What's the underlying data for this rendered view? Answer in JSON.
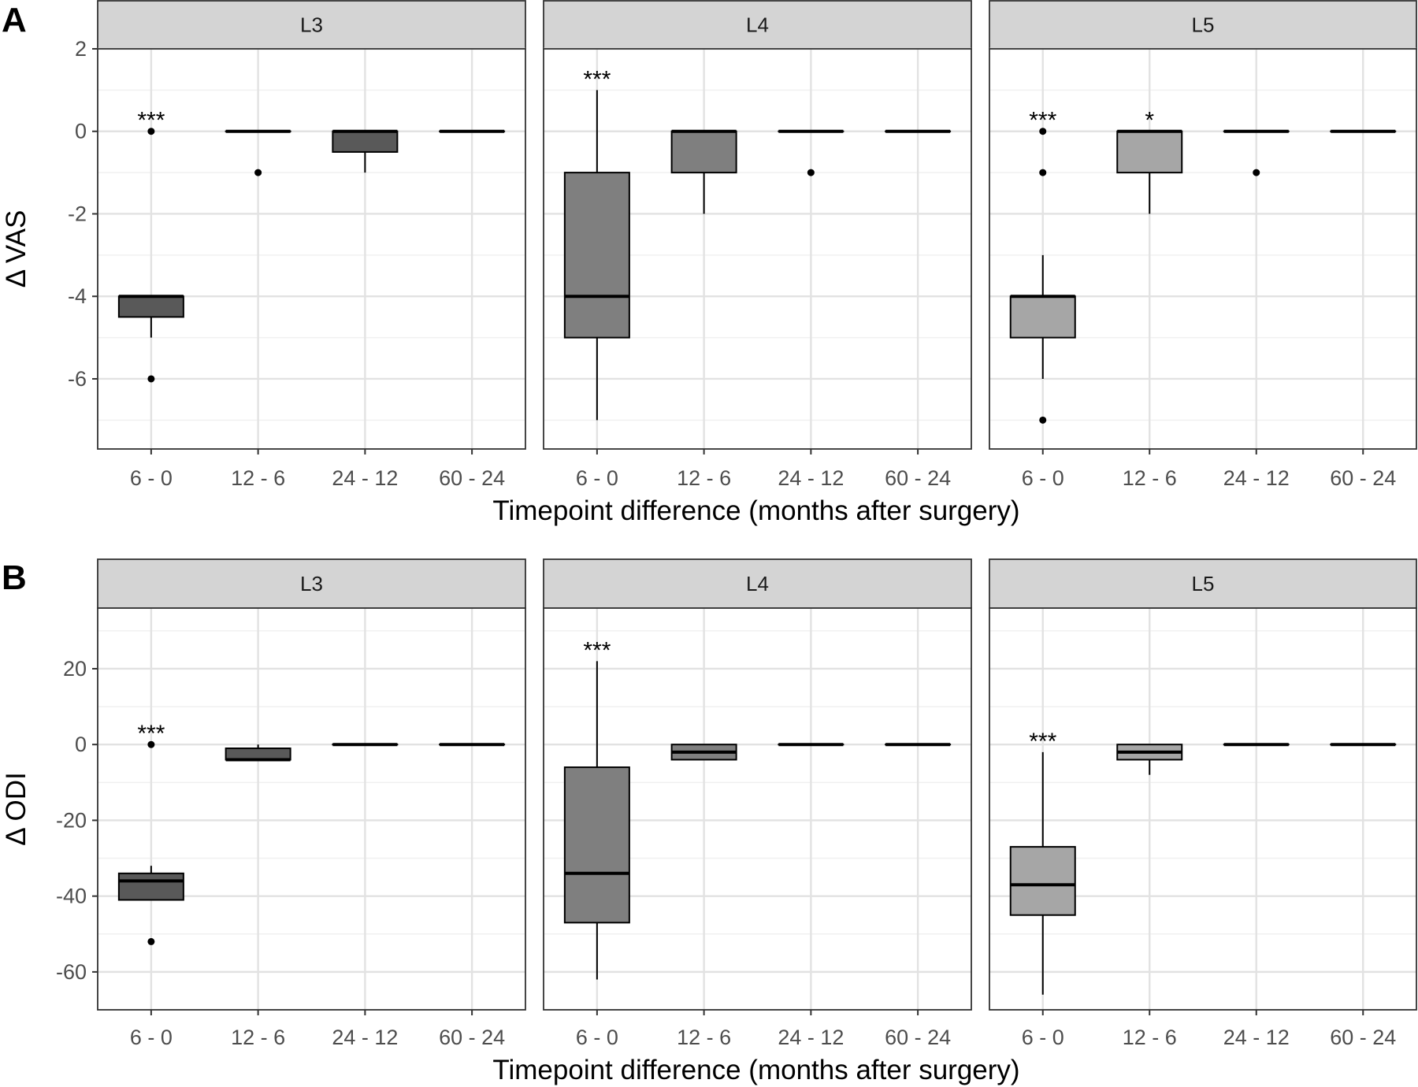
{
  "chart_data": [
    {
      "type": "boxplot",
      "panel_label": "A",
      "facets": [
        "L3",
        "L4",
        "L5"
      ],
      "categories": [
        "6 - 0",
        "12 - 6",
        "24 - 12",
        "60 - 24"
      ],
      "xlabel": "Timepoint difference (months after surgery)",
      "ylabel": "Δ VAS",
      "ylim": [
        -7.7,
        2.0
      ],
      "yticks": [
        2,
        0,
        -2,
        -4,
        -6
      ],
      "ytick_labels": [
        "2",
        "0",
        "-2",
        "-4",
        "-6"
      ],
      "grid": true,
      "fill_colors": {
        "L3": "#595959",
        "L4": "#7f7f7f",
        "L5": "#a6a6a6"
      },
      "boxes": {
        "L3": [
          {
            "q1": -4.5,
            "median": -4,
            "q3": -4,
            "whisker_low": -5,
            "whisker_high": -4,
            "outliers": [
              0,
              -6
            ],
            "sig": "***"
          },
          {
            "q1": 0,
            "median": 0,
            "q3": 0,
            "whisker_low": 0,
            "whisker_high": 0,
            "outliers": [
              -1
            ],
            "sig": ""
          },
          {
            "q1": -0.5,
            "median": 0,
            "q3": 0,
            "whisker_low": -1,
            "whisker_high": 0,
            "outliers": [],
            "sig": ""
          },
          {
            "q1": 0,
            "median": 0,
            "q3": 0,
            "whisker_low": 0,
            "whisker_high": 0,
            "outliers": [],
            "sig": ""
          }
        ],
        "L4": [
          {
            "q1": -5,
            "median": -4,
            "q3": -1,
            "whisker_low": -7,
            "whisker_high": 1,
            "outliers": [],
            "sig": "***"
          },
          {
            "q1": -1,
            "median": 0,
            "q3": 0,
            "whisker_low": -2,
            "whisker_high": 0,
            "outliers": [],
            "sig": ""
          },
          {
            "q1": 0,
            "median": 0,
            "q3": 0,
            "whisker_low": 0,
            "whisker_high": 0,
            "outliers": [
              -1
            ],
            "sig": ""
          },
          {
            "q1": 0,
            "median": 0,
            "q3": 0,
            "whisker_low": 0,
            "whisker_high": 0,
            "outliers": [],
            "sig": ""
          }
        ],
        "L5": [
          {
            "q1": -5,
            "median": -4,
            "q3": -4,
            "whisker_low": -6,
            "whisker_high": -3,
            "outliers": [
              0,
              -1,
              -7
            ],
            "sig": "***"
          },
          {
            "q1": -1,
            "median": 0,
            "q3": 0,
            "whisker_low": -2,
            "whisker_high": 0,
            "outliers": [],
            "sig": "*"
          },
          {
            "q1": 0,
            "median": 0,
            "q3": 0,
            "whisker_low": 0,
            "whisker_high": 0,
            "outliers": [
              -1
            ],
            "sig": ""
          },
          {
            "q1": 0,
            "median": 0,
            "q3": 0,
            "whisker_low": 0,
            "whisker_high": 0,
            "outliers": [],
            "sig": ""
          }
        ]
      }
    },
    {
      "type": "boxplot",
      "panel_label": "B",
      "facets": [
        "L3",
        "L4",
        "L5"
      ],
      "categories": [
        "6 - 0",
        "12 - 6",
        "24 - 12",
        "60 - 24"
      ],
      "xlabel": "Timepoint difference (months after surgery)",
      "ylabel": "Δ ODI",
      "ylim": [
        -70,
        36
      ],
      "yticks": [
        20,
        0,
        -20,
        -40,
        -60
      ],
      "ytick_labels": [
        "20",
        "0",
        "-20",
        "-40",
        "-60"
      ],
      "grid": true,
      "fill_colors": {
        "L3": "#595959",
        "L4": "#7f7f7f",
        "L5": "#a6a6a6"
      },
      "boxes": {
        "L3": [
          {
            "q1": -41,
            "median": -36,
            "q3": -34,
            "whisker_low": -41,
            "whisker_high": -32,
            "outliers": [
              0,
              -52
            ],
            "sig": "***"
          },
          {
            "q1": -4,
            "median": -4,
            "q3": -1,
            "whisker_low": -4,
            "whisker_high": 0,
            "outliers": [],
            "sig": ""
          },
          {
            "q1": 0,
            "median": 0,
            "q3": 0,
            "whisker_low": 0,
            "whisker_high": 0,
            "outliers": [],
            "sig": ""
          },
          {
            "q1": 0,
            "median": 0,
            "q3": 0,
            "whisker_low": 0,
            "whisker_high": 0,
            "outliers": [],
            "sig": ""
          }
        ],
        "L4": [
          {
            "q1": -47,
            "median": -34,
            "q3": -6,
            "whisker_low": -62,
            "whisker_high": 22,
            "outliers": [],
            "sig": "***"
          },
          {
            "q1": -4,
            "median": -2,
            "q3": 0,
            "whisker_low": -4,
            "whisker_high": 0,
            "outliers": [],
            "sig": ""
          },
          {
            "q1": 0,
            "median": 0,
            "q3": 0,
            "whisker_low": 0,
            "whisker_high": 0,
            "outliers": [],
            "sig": ""
          },
          {
            "q1": 0,
            "median": 0,
            "q3": 0,
            "whisker_low": 0,
            "whisker_high": 0,
            "outliers": [],
            "sig": ""
          }
        ],
        "L5": [
          {
            "q1": -45,
            "median": -37,
            "q3": -27,
            "whisker_low": -66,
            "whisker_high": -2,
            "outliers": [],
            "sig": "***"
          },
          {
            "q1": -4,
            "median": -2,
            "q3": 0,
            "whisker_low": -8,
            "whisker_high": 0,
            "outliers": [],
            "sig": ""
          },
          {
            "q1": 0,
            "median": 0,
            "q3": 0,
            "whisker_low": 0,
            "whisker_high": 0,
            "outliers": [],
            "sig": ""
          },
          {
            "q1": 0,
            "median": 0,
            "q3": 0,
            "whisker_low": 0,
            "whisker_high": 0,
            "outliers": [],
            "sig": ""
          }
        ]
      }
    }
  ]
}
